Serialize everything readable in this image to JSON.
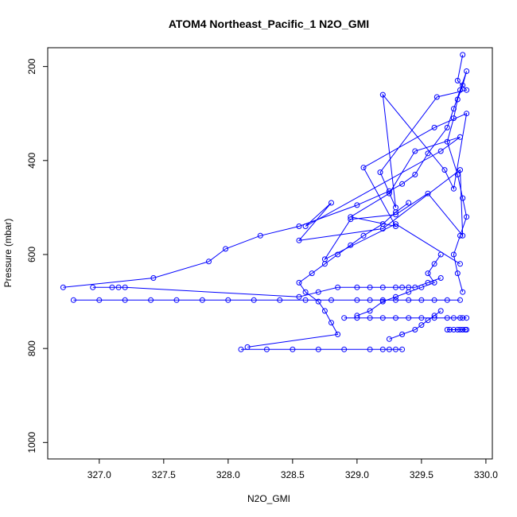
{
  "chart_data": {
    "type": "line",
    "title": "ATOM4 Northeast_Pacific_1 N2O_GMI",
    "xlabel": "N2O_GMI",
    "ylabel": "Pressure (mbar)",
    "xlim": [
      326.6,
      330.05
    ],
    "ylim": [
      1035,
      160
    ],
    "y_inverted": true,
    "x_ticks": [
      327.0,
      327.5,
      328.0,
      328.5,
      329.0,
      329.5,
      330.0
    ],
    "x_tick_labels": [
      "327.0",
      "327.5",
      "328.0",
      "328.5",
      "329.0",
      "329.5",
      "330.0"
    ],
    "y_ticks": [
      200,
      400,
      600,
      800,
      1000
    ],
    "y_tick_labels": [
      "200",
      "400",
      "600",
      "800",
      "1000"
    ],
    "grid": false,
    "marker": "open-circle",
    "series_color": "#0000ff",
    "series": [
      {
        "x": [
          329.82,
          329.78,
          329.85,
          329.62,
          329.18,
          329.3,
          329.2,
          329.68,
          329.75,
          329.85,
          329.6,
          329.05,
          329.3,
          328.95,
          329.25,
          329.45,
          329.8,
          329.65,
          328.6,
          328.8,
          328.55,
          329.2,
          329.8,
          329.82,
          329.55,
          329.3,
          328.95,
          328.75,
          329.3,
          329.8
        ],
        "y": [
          175,
          230,
          250,
          265,
          425,
          500,
          260,
          420,
          460,
          300,
          330,
          415,
          540,
          520,
          470,
          380,
          350,
          380,
          540,
          490,
          570,
          545,
          420,
          560,
          470,
          515,
          525,
          610,
          535,
          620
        ]
      },
      {
        "x": [
          326.72,
          327.42,
          327.85,
          327.98,
          328.25,
          328.55,
          329.0,
          329.25,
          329.35,
          329.45,
          329.55,
          329.7,
          329.75,
          329.8,
          329.85,
          329.82,
          329.78,
          329.75,
          329.7,
          329.78,
          329.82,
          329.85,
          329.8,
          329.75,
          329.78,
          329.82
        ],
        "y": [
          670,
          650,
          615,
          588,
          560,
          540,
          495,
          465,
          450,
          430,
          385,
          330,
          290,
          250,
          210,
          240,
          270,
          310,
          360,
          430,
          480,
          520,
          560,
          600,
          640,
          680
        ]
      },
      {
        "x": [
          326.8,
          327.0,
          327.2,
          327.4,
          327.6,
          327.8,
          328.0,
          328.2,
          328.4,
          328.6,
          328.8,
          329.0,
          329.1,
          329.2,
          329.3,
          329.4,
          329.5,
          329.6,
          329.7,
          329.8
        ],
        "y": [
          697,
          697,
          697,
          697,
          697,
          697,
          697,
          697,
          697,
          697,
          697,
          697,
          697,
          697,
          697,
          697,
          697,
          697,
          697,
          697
        ]
      },
      {
        "x": [
          326.95,
          327.1,
          327.15,
          327.2,
          328.55,
          328.7,
          328.85,
          329.0,
          329.1,
          329.2,
          329.3,
          329.35,
          329.4,
          329.45,
          329.55,
          329.65
        ],
        "y": [
          670,
          670,
          670,
          670,
          690,
          680,
          670,
          670,
          670,
          670,
          670,
          670,
          670,
          670,
          660,
          650
        ]
      },
      {
        "x": [
          328.1,
          328.3,
          328.5,
          328.7,
          328.9,
          329.1,
          329.2,
          329.25,
          329.3,
          329.35
        ],
        "y": [
          802,
          802,
          802,
          802,
          802,
          802,
          802,
          802,
          802,
          802
        ]
      },
      {
        "x": [
          328.15,
          328.85,
          328.8,
          328.75,
          328.7,
          328.6,
          328.55,
          328.65,
          328.75,
          328.85,
          328.95,
          329.05,
          329.2,
          329.3,
          329.4
        ],
        "y": [
          797,
          770,
          745,
          720,
          700,
          680,
          660,
          640,
          620,
          600,
          580,
          560,
          535,
          510,
          490
        ]
      },
      {
        "x": [
          328.9,
          329.0,
          329.1,
          329.2,
          329.3,
          329.4,
          329.5,
          329.6,
          329.7,
          329.75,
          329.8,
          329.82,
          329.85
        ],
        "y": [
          735,
          735,
          735,
          735,
          735,
          735,
          735,
          735,
          735,
          735,
          735,
          735,
          735
        ]
      },
      {
        "x": [
          329.7,
          329.72,
          329.75,
          329.78,
          329.8,
          329.82,
          329.84,
          329.85
        ],
        "y": [
          760,
          760,
          760,
          760,
          760,
          760,
          760,
          760
        ]
      },
      {
        "x": [
          329.0,
          329.1,
          329.2,
          329.3,
          329.4,
          329.5,
          329.6,
          329.55,
          329.6,
          329.65
        ],
        "y": [
          730,
          720,
          700,
          690,
          680,
          670,
          660,
          640,
          620,
          600
        ]
      },
      {
        "x": [
          329.25,
          329.35,
          329.45,
          329.5,
          329.55,
          329.6,
          329.65
        ],
        "y": [
          780,
          770,
          760,
          750,
          740,
          730,
          720
        ]
      }
    ]
  }
}
